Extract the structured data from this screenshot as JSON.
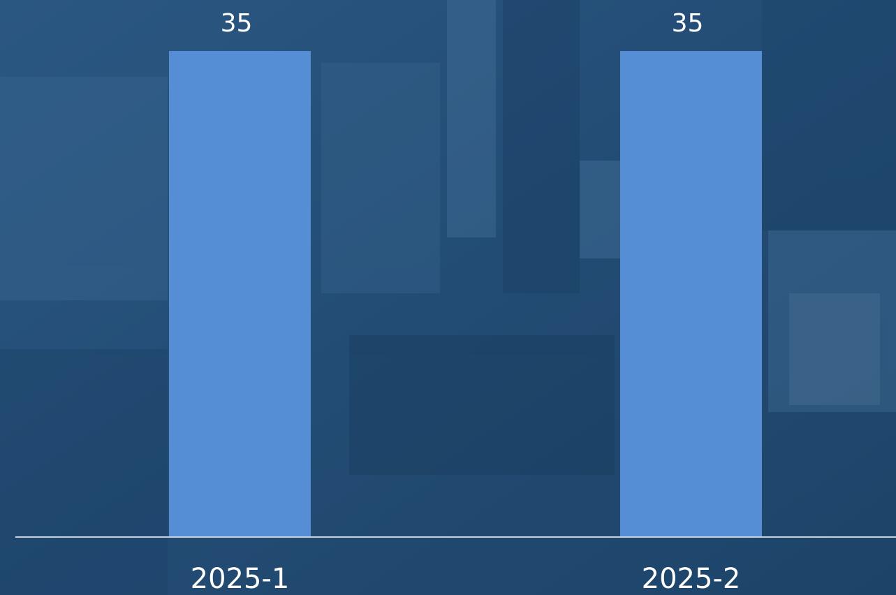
{
  "chart_data": {
    "type": "bar",
    "categories": [
      "2025-1",
      "2025-2"
    ],
    "values": [
      35,
      35
    ],
    "color": "#558ed5"
  }
}
